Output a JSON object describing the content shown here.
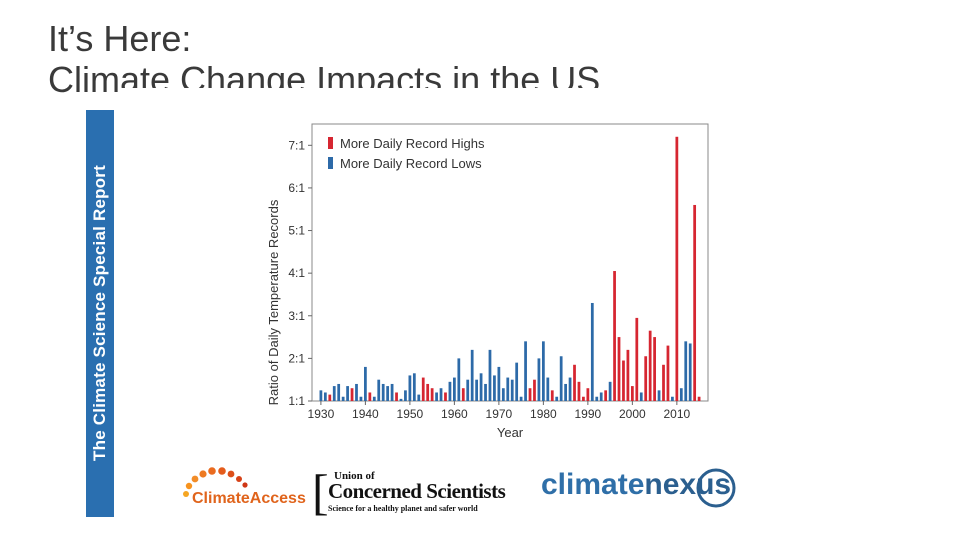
{
  "slide": {
    "title_line1": "It’s Here:",
    "title_line2": "Climate Change Impacts in the US",
    "side_label": "The Climate Science Special Report"
  },
  "colors": {
    "record_highs": "#d62631",
    "record_lows": "#2d6aa8",
    "side_band": "#2a6fb0"
  },
  "chart_data": {
    "type": "bar",
    "title": "",
    "xlabel": "Year",
    "ylabel": "Ratio of Daily Temperature Records",
    "xlim": [
      1928,
      2017
    ],
    "ylim": [
      1,
      7.5
    ],
    "x_ticks": [
      1930,
      1940,
      1950,
      1960,
      1970,
      1980,
      1990,
      2000,
      2010
    ],
    "x_tick_labels": [
      "1930",
      "1940",
      "1950",
      "1960",
      "1970",
      "1980",
      "1990",
      "2000",
      "2010"
    ],
    "y_ticks": [
      1,
      2,
      3,
      4,
      5,
      6,
      7
    ],
    "y_tick_labels": [
      "1:1",
      "2:1",
      "3:1",
      "4:1",
      "5:1",
      "6:1",
      "7:1"
    ],
    "legend_position": "top-left",
    "series": [
      {
        "name": "More Daily Record Highs",
        "color": "#d62631"
      },
      {
        "name": "More Daily Record Lows",
        "color": "#2d6aa8"
      }
    ],
    "years": [
      1930,
      1931,
      1932,
      1933,
      1934,
      1935,
      1936,
      1937,
      1938,
      1939,
      1940,
      1941,
      1942,
      1943,
      1944,
      1945,
      1946,
      1947,
      1948,
      1949,
      1950,
      1951,
      1952,
      1953,
      1954,
      1955,
      1956,
      1957,
      1958,
      1959,
      1960,
      1961,
      1962,
      1963,
      1964,
      1965,
      1966,
      1967,
      1968,
      1969,
      1970,
      1971,
      1972,
      1973,
      1974,
      1975,
      1976,
      1977,
      1978,
      1979,
      1980,
      1981,
      1982,
      1983,
      1984,
      1985,
      1986,
      1987,
      1988,
      1989,
      1990,
      1991,
      1992,
      1993,
      1994,
      1995,
      1996,
      1997,
      1998,
      1999,
      2000,
      2001,
      2002,
      2003,
      2004,
      2005,
      2006,
      2007,
      2008,
      2009,
      2010,
      2011,
      2012,
      2013,
      2014,
      2015
    ],
    "ratios": [
      1.25,
      1.2,
      1.15,
      1.35,
      1.4,
      1.1,
      1.35,
      1.3,
      1.4,
      1.1,
      1.8,
      1.2,
      1.1,
      1.5,
      1.4,
      1.35,
      1.4,
      1.2,
      1.05,
      1.25,
      1.6,
      1.65,
      1.15,
      1.55,
      1.4,
      1.3,
      1.2,
      1.3,
      1.2,
      1.45,
      1.55,
      2.0,
      1.3,
      1.5,
      2.2,
      1.5,
      1.65,
      1.4,
      2.2,
      1.6,
      1.8,
      1.3,
      1.55,
      1.5,
      1.9,
      1.1,
      2.4,
      1.3,
      1.5,
      2.0,
      2.4,
      1.55,
      1.25,
      1.1,
      2.05,
      1.4,
      1.55,
      1.85,
      1.45,
      1.1,
      1.3,
      3.3,
      1.1,
      1.2,
      1.25,
      1.45,
      4.05,
      2.5,
      1.95,
      2.2,
      1.35,
      2.95,
      1.2,
      2.05,
      2.65,
      2.5,
      1.25,
      1.85,
      2.3,
      1.1,
      7.2,
      1.3,
      2.4,
      2.35,
      5.6,
      1.1
    ],
    "direction": [
      "lows",
      "lows",
      "highs",
      "lows",
      "lows",
      "lows",
      "lows",
      "highs",
      "lows",
      "lows",
      "lows",
      "highs",
      "lows",
      "lows",
      "lows",
      "lows",
      "lows",
      "highs",
      "lows",
      "lows",
      "lows",
      "lows",
      "lows",
      "highs",
      "highs",
      "highs",
      "lows",
      "lows",
      "highs",
      "lows",
      "lows",
      "lows",
      "highs",
      "lows",
      "lows",
      "lows",
      "lows",
      "lows",
      "lows",
      "lows",
      "lows",
      "lows",
      "lows",
      "lows",
      "lows",
      "lows",
      "lows",
      "highs",
      "highs",
      "lows",
      "lows",
      "lows",
      "highs",
      "lows",
      "lows",
      "lows",
      "lows",
      "highs",
      "highs",
      "highs",
      "highs",
      "lows",
      "lows",
      "lows",
      "highs",
      "lows",
      "highs",
      "highs",
      "highs",
      "highs",
      "highs",
      "highs",
      "lows",
      "highs",
      "highs",
      "highs",
      "lows",
      "highs",
      "highs",
      "lows",
      "highs",
      "lows",
      "lows",
      "lows",
      "highs",
      "highs"
    ]
  },
  "logos": {
    "climate_access": "ClimateAccess",
    "ucs_line1": "Union of",
    "ucs_line2": "Concerned Scientists",
    "ucs_line3": "Science for a healthy planet and safer world",
    "climatenexus_a": "climate",
    "climatenexus_b": "nexus"
  }
}
